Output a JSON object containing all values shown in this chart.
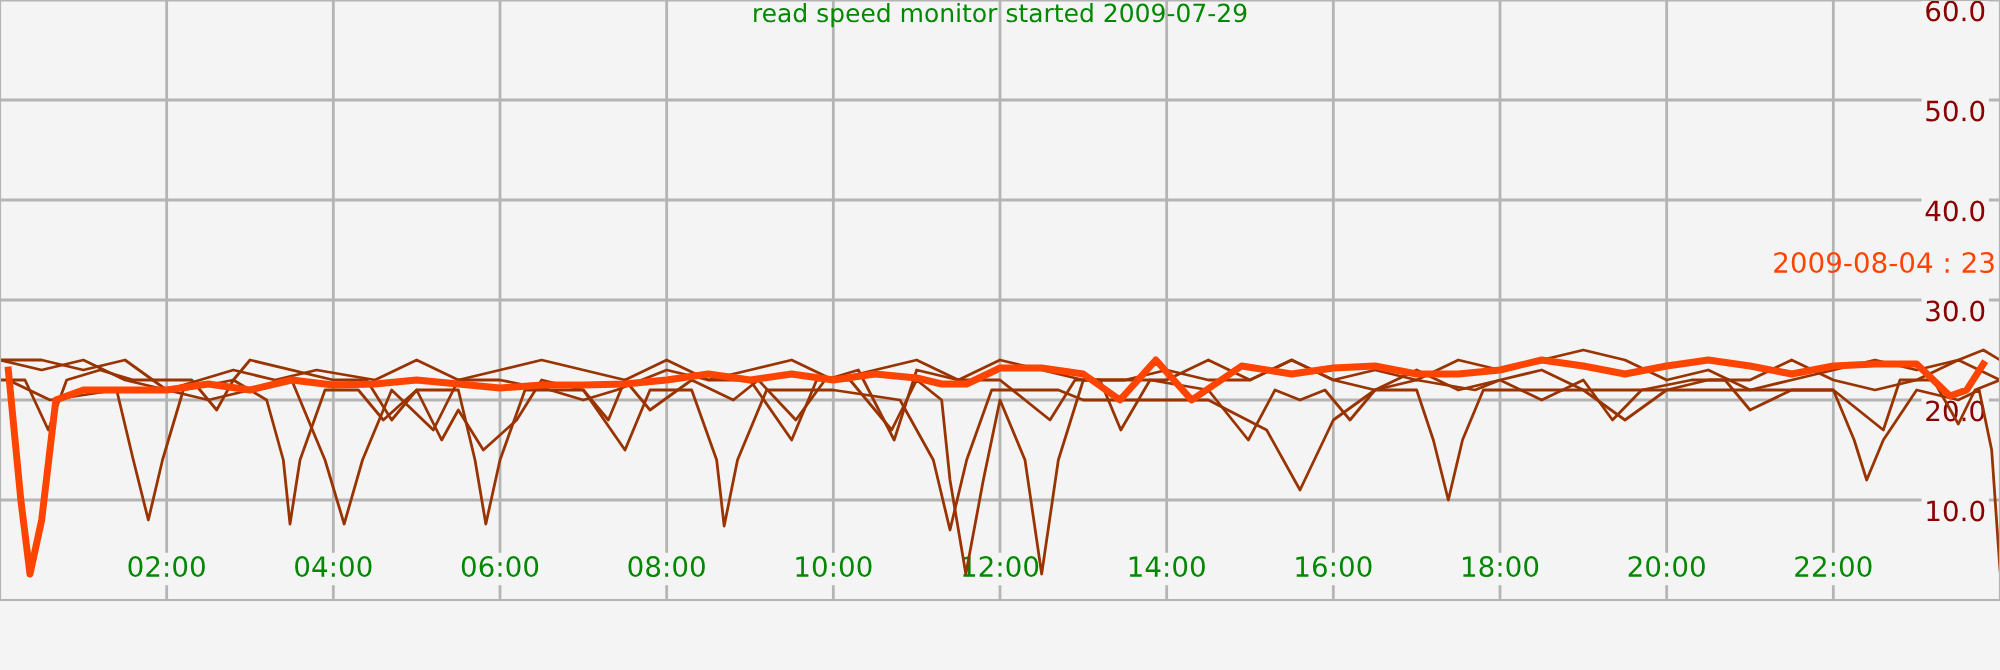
{
  "chart_data": {
    "type": "line",
    "title": "read speed monitor started 2009-07-29",
    "xlim": [
      0,
      24
    ],
    "ylim": [
      0,
      60
    ],
    "xticks": [
      {
        "value": 2,
        "label": "02:00"
      },
      {
        "value": 4,
        "label": "04:00"
      },
      {
        "value": 6,
        "label": "06:00"
      },
      {
        "value": 8,
        "label": "08:00"
      },
      {
        "value": 10,
        "label": "10:00"
      },
      {
        "value": 12,
        "label": "12:00"
      },
      {
        "value": 14,
        "label": "14:00"
      },
      {
        "value": 16,
        "label": "16:00"
      },
      {
        "value": 18,
        "label": "18:00"
      },
      {
        "value": 20,
        "label": "20:00"
      },
      {
        "value": 22,
        "label": "22:00"
      }
    ],
    "yticks": [
      {
        "value": 10,
        "label": "10.0"
      },
      {
        "value": 20,
        "label": "20.0"
      },
      {
        "value": 30,
        "label": "30.0"
      },
      {
        "value": 40,
        "label": "40.0"
      },
      {
        "value": 50,
        "label": "50.0"
      },
      {
        "value": 60,
        "label": "60.0"
      }
    ],
    "grid": true,
    "legend": false,
    "marker": "none",
    "line_style": "solid",
    "annotations": [
      "2009-08-04 : 23"
    ],
    "series": [
      {
        "color": "#993300",
        "x": [
          0.0,
          0.5,
          1.0,
          1.5,
          2.0,
          2.4,
          2.8,
          3.3,
          3.8,
          4.5,
          5.0,
          5.5,
          6.0,
          6.5,
          7.0,
          7.5,
          8.0,
          8.5,
          9.0,
          9.5,
          10.0,
          10.5,
          11.0,
          11.5,
          12.0,
          12.5,
          13.0,
          13.5,
          14.0,
          14.5,
          15.0,
          15.5,
          16.0,
          16.5,
          17.0,
          17.5,
          18.0,
          18.5,
          19.0,
          19.5,
          20.0,
          20.5,
          21.0,
          21.5,
          22.0,
          22.5,
          23.0,
          23.5,
          23.8,
          24.0
        ],
        "values": [
          24,
          23,
          24,
          22,
          21,
          22,
          23,
          22,
          23,
          22,
          24,
          22,
          23,
          24,
          23,
          22,
          24,
          22,
          23,
          24,
          22,
          23,
          24,
          22,
          24,
          23,
          22,
          22,
          23,
          22,
          22,
          24,
          22,
          23,
          22,
          24,
          23,
          24,
          25,
          24,
          22,
          23,
          21,
          22,
          23,
          24,
          23,
          24,
          25,
          24
        ]
      },
      {
        "color": "#993300",
        "x": [
          0.0,
          0.3,
          0.58,
          0.8,
          1.2,
          1.6,
          2.3,
          2.6,
          2.8,
          3.0,
          4.0,
          4.4,
          4.7,
          5.0,
          5.3,
          5.5,
          5.8,
          6.2,
          6.5,
          7.0,
          7.3,
          7.5,
          7.8,
          8.3,
          8.8,
          9.1,
          9.55,
          9.9,
          10.3,
          10.73,
          11.0,
          11.5,
          12.0,
          12.6,
          12.9,
          13.2,
          13.45,
          13.8,
          14.5,
          14.98,
          15.3,
          15.6,
          15.9,
          16.2,
          16.5,
          17.0,
          17.7,
          18.0,
          18.5,
          19.0,
          19.35,
          19.7,
          20.3,
          20.7,
          21.0,
          21.5,
          22.0,
          22.6,
          22.8,
          23.2,
          23.5,
          23.7,
          24.0
        ],
        "values": [
          22,
          22,
          17,
          22,
          23,
          22,
          22,
          19,
          22,
          24,
          22,
          22,
          18,
          21,
          16,
          19,
          15,
          18,
          22,
          21,
          18,
          22,
          19,
          22,
          20,
          22,
          18,
          22,
          23,
          16,
          23,
          22,
          22,
          18,
          22,
          22,
          17,
          22,
          21,
          16,
          21,
          20,
          21,
          18,
          21,
          22,
          21,
          22,
          20,
          22,
          18,
          21,
          22,
          22,
          19,
          21,
          21,
          17,
          22,
          22,
          17.6,
          21,
          22
        ]
      },
      {
        "color": "#993300",
        "x": [
          0.0,
          0.5,
          1.0,
          1.5,
          2.0,
          2.5,
          3.0,
          3.5,
          3.9,
          4.13,
          4.35,
          4.7,
          5.2,
          5.5,
          6.0,
          6.6,
          7.0,
          7.4,
          8.0,
          8.5,
          9.0,
          9.5,
          9.8,
          10.2,
          10.7,
          11.0,
          11.3,
          11.4,
          11.59,
          11.8,
          12.0,
          12.3,
          12.5,
          12.7,
          13.0,
          13.5,
          14.0,
          14.5,
          15.0,
          15.5,
          16.0,
          16.5,
          17.0,
          17.5,
          18.0,
          18.5,
          19.0,
          19.5,
          20.0,
          20.5,
          21.0,
          21.5,
          22.0,
          22.5,
          23.0,
          23.5,
          24.0
        ],
        "values": [
          24,
          24,
          23,
          24,
          21,
          20,
          21,
          22,
          14,
          7.6,
          14,
          21,
          17,
          22,
          22,
          21,
          20,
          21,
          23,
          22,
          22,
          16,
          22,
          22,
          17,
          22,
          20,
          12,
          2.6,
          12,
          20,
          14,
          2.6,
          14,
          22,
          22,
          22,
          24,
          22,
          24,
          22,
          21,
          23,
          21,
          22,
          23,
          21,
          18,
          21,
          22,
          22,
          24,
          22,
          21,
          22,
          24,
          22
        ]
      },
      {
        "color": "#993300",
        "x": [
          0.1,
          0.6,
          1.4,
          1.6,
          1.78,
          1.95,
          2.2,
          2.8,
          3.2,
          3.4,
          3.48,
          3.6,
          3.9,
          4.3,
          4.6,
          5.0,
          5.5,
          5.7,
          5.83,
          6.0,
          6.3,
          7.0,
          7.5,
          7.8,
          8.3,
          8.6,
          8.69,
          8.85,
          9.2,
          10.0,
          10.8,
          11.2,
          11.4,
          11.6,
          11.9,
          12.7,
          13.0,
          13.5,
          14.5,
          15.2,
          15.6,
          16.0,
          16.5,
          17.0,
          17.2,
          17.38,
          17.55,
          17.8,
          19.0,
          20.0,
          21.0,
          22.0,
          22.25,
          22.4,
          22.6,
          23.0,
          23.5,
          23.75,
          23.9,
          24.0
        ],
        "values": [
          22,
          20,
          21,
          14,
          8.0,
          14,
          21,
          22,
          20,
          14,
          7.6,
          14,
          21,
          21,
          18,
          21,
          21,
          14,
          7.6,
          14,
          21,
          21,
          15,
          21,
          21,
          14,
          7.4,
          14,
          21,
          21,
          20,
          14,
          7,
          14,
          21,
          21,
          20,
          20,
          20,
          17,
          11,
          18,
          21,
          21,
          16,
          10,
          16,
          21,
          21,
          21,
          21,
          21,
          16,
          12,
          16,
          21,
          20,
          21,
          15,
          3
        ]
      },
      {
        "color": "#ff4400",
        "x": [
          0.1,
          0.25,
          0.36,
          0.5,
          0.67,
          1.0,
          1.5,
          2.0,
          2.5,
          3.0,
          3.5,
          4.0,
          4.5,
          5.0,
          5.5,
          6.0,
          6.5,
          7.0,
          7.5,
          8.0,
          8.5,
          9.0,
          9.5,
          10.0,
          10.5,
          11.0,
          11.3,
          11.6,
          12.0,
          12.5,
          13.0,
          13.44,
          13.87,
          14.3,
          14.9,
          15.5,
          16.0,
          16.5,
          17.0,
          17.5,
          18.0,
          18.5,
          19.0,
          19.5,
          20.0,
          20.5,
          21.0,
          21.5,
          22.0,
          22.5,
          23.0,
          23.4,
          23.6,
          23.8
        ],
        "values": [
          23,
          10,
          2.6,
          8,
          20,
          21,
          21,
          21,
          21.6,
          21,
          22,
          21.5,
          21.6,
          22,
          21.6,
          21.2,
          21.5,
          21.5,
          21.6,
          22,
          22.6,
          22,
          22.6,
          22,
          22.6,
          22.2,
          21.6,
          21.6,
          23.2,
          23.2,
          22.6,
          20,
          24,
          20,
          23.4,
          22.6,
          23.2,
          23.4,
          22.6,
          22.6,
          23,
          24,
          23.4,
          22.6,
          23.4,
          24,
          23.4,
          22.6,
          23.4,
          23.6,
          23.6,
          20.4,
          21,
          23.6
        ]
      }
    ]
  }
}
